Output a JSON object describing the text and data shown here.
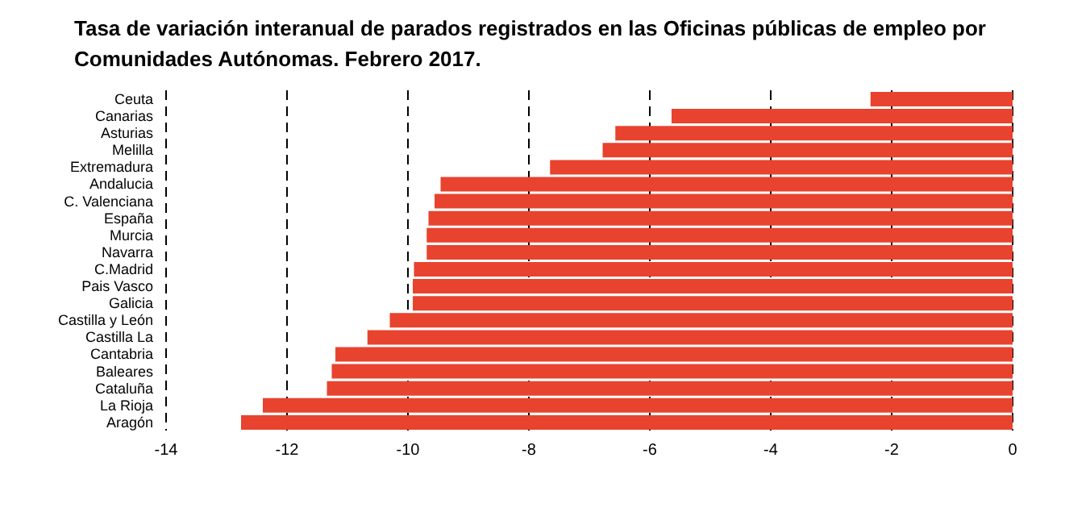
{
  "chart_data": {
    "type": "bar",
    "orientation": "horizontal",
    "title": "Tasa de variación interanual de parados registrados en las Oficinas públicas de empleo por Comunidades Autónomas.  Febrero  2017.",
    "categories": [
      "Ceuta",
      "Canarias",
      "Asturias",
      "Melilla",
      "Extremadura",
      "Andalucia",
      "C. Valenciana",
      "España",
      "Murcia",
      "Navarra",
      "C.Madrid",
      "Pais Vasco",
      "Galicia",
      "Castilla y León",
      "Castilla La",
      "Cantabria",
      "Baleares",
      "Cataluña",
      "La Rioja",
      "Aragón"
    ],
    "values": [
      -2.35,
      -5.64,
      -6.57,
      -6.78,
      -7.65,
      -9.46,
      -9.56,
      -9.66,
      -9.69,
      -9.69,
      -9.9,
      -9.92,
      -9.92,
      -10.3,
      -10.67,
      -11.2,
      -11.26,
      -11.34,
      -12.4,
      -12.76
    ],
    "color": "#e8432e",
    "xlim": [
      -14,
      0
    ],
    "xticks": [
      -14,
      -12,
      -10,
      -8,
      -6,
      -4,
      -2,
      0
    ],
    "grid": "x",
    "line_style": "dashed"
  }
}
